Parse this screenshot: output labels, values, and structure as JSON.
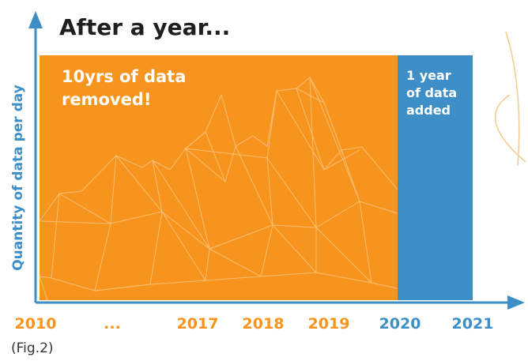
{
  "title": "After a year...",
  "y_axis_label": "Quantity of data per day",
  "removed_box": {
    "lines": [
      "10yrs of data",
      "removed!"
    ]
  },
  "added_box": {
    "lines": [
      "1 year",
      "of data",
      "added"
    ]
  },
  "x_labels": [
    "2010",
    "...",
    "2017",
    "2018",
    "2019",
    "2020",
    "2021"
  ],
  "caption": "(Fig.2)"
}
